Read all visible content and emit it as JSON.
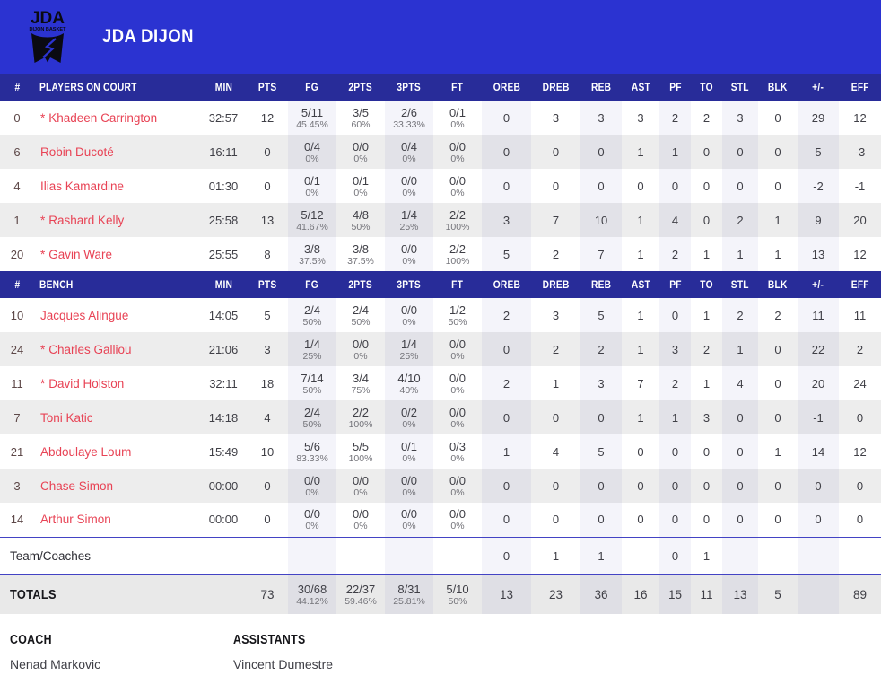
{
  "team": {
    "name": "JDA DIJON",
    "logo_text": "JDA",
    "logo_subtext": "DIJON BASKET"
  },
  "table": {
    "group_labels": {
      "on_court": "PLAYERS ON COURT",
      "bench": "BENCH"
    },
    "columns": {
      "num": "#",
      "min": "MIN",
      "pts": "PTS",
      "fg": "FG",
      "p2": "2PTS",
      "p3": "3PTS",
      "ft": "FT",
      "oreb": "OREB",
      "dreb": "DREB",
      "reb": "REB",
      "ast": "AST",
      "pf": "PF",
      "to": "TO",
      "stl": "STL",
      "blk": "BLK",
      "pm": "+/-",
      "eff": "EFF"
    },
    "starter_marker": "*",
    "on_court": [
      {
        "num": "0",
        "starter": true,
        "name": "Khadeen Carrington",
        "min": "32:57",
        "pts": "12",
        "fg": "5/11",
        "fgp": "45.45%",
        "p2": "3/5",
        "p2p": "60%",
        "p3": "2/6",
        "p3p": "33.33%",
        "ft": "0/1",
        "ftp": "0%",
        "oreb": "0",
        "dreb": "3",
        "reb": "3",
        "ast": "3",
        "pf": "2",
        "to": "2",
        "stl": "3",
        "blk": "0",
        "pm": "29",
        "eff": "12"
      },
      {
        "num": "6",
        "starter": false,
        "name": "Robin Ducoté",
        "min": "16:11",
        "pts": "0",
        "fg": "0/4",
        "fgp": "0%",
        "p2": "0/0",
        "p2p": "0%",
        "p3": "0/4",
        "p3p": "0%",
        "ft": "0/0",
        "ftp": "0%",
        "oreb": "0",
        "dreb": "0",
        "reb": "0",
        "ast": "1",
        "pf": "1",
        "to": "0",
        "stl": "0",
        "blk": "0",
        "pm": "5",
        "eff": "-3"
      },
      {
        "num": "4",
        "starter": false,
        "name": "Ilias Kamardine",
        "min": "01:30",
        "pts": "0",
        "fg": "0/1",
        "fgp": "0%",
        "p2": "0/1",
        "p2p": "0%",
        "p3": "0/0",
        "p3p": "0%",
        "ft": "0/0",
        "ftp": "0%",
        "oreb": "0",
        "dreb": "0",
        "reb": "0",
        "ast": "0",
        "pf": "0",
        "to": "0",
        "stl": "0",
        "blk": "0",
        "pm": "-2",
        "eff": "-1"
      },
      {
        "num": "1",
        "starter": true,
        "name": "Rashard Kelly",
        "min": "25:58",
        "pts": "13",
        "fg": "5/12",
        "fgp": "41.67%",
        "p2": "4/8",
        "p2p": "50%",
        "p3": "1/4",
        "p3p": "25%",
        "ft": "2/2",
        "ftp": "100%",
        "oreb": "3",
        "dreb": "7",
        "reb": "10",
        "ast": "1",
        "pf": "4",
        "to": "0",
        "stl": "2",
        "blk": "1",
        "pm": "9",
        "eff": "20"
      },
      {
        "num": "20",
        "starter": true,
        "name": "Gavin Ware",
        "min": "25:55",
        "pts": "8",
        "fg": "3/8",
        "fgp": "37.5%",
        "p2": "3/8",
        "p2p": "37.5%",
        "p3": "0/0",
        "p3p": "0%",
        "ft": "2/2",
        "ftp": "100%",
        "oreb": "5",
        "dreb": "2",
        "reb": "7",
        "ast": "1",
        "pf": "2",
        "to": "1",
        "stl": "1",
        "blk": "1",
        "pm": "13",
        "eff": "12"
      }
    ],
    "bench": [
      {
        "num": "10",
        "starter": false,
        "name": "Jacques Alingue",
        "min": "14:05",
        "pts": "5",
        "fg": "2/4",
        "fgp": "50%",
        "p2": "2/4",
        "p2p": "50%",
        "p3": "0/0",
        "p3p": "0%",
        "ft": "1/2",
        "ftp": "50%",
        "oreb": "2",
        "dreb": "3",
        "reb": "5",
        "ast": "1",
        "pf": "0",
        "to": "1",
        "stl": "2",
        "blk": "2",
        "pm": "11",
        "eff": "11"
      },
      {
        "num": "24",
        "starter": true,
        "name": "Charles Galliou",
        "min": "21:06",
        "pts": "3",
        "fg": "1/4",
        "fgp": "25%",
        "p2": "0/0",
        "p2p": "0%",
        "p3": "1/4",
        "p3p": "25%",
        "ft": "0/0",
        "ftp": "0%",
        "oreb": "0",
        "dreb": "2",
        "reb": "2",
        "ast": "1",
        "pf": "3",
        "to": "2",
        "stl": "1",
        "blk": "0",
        "pm": "22",
        "eff": "2"
      },
      {
        "num": "11",
        "starter": true,
        "name": "David Holston",
        "min": "32:11",
        "pts": "18",
        "fg": "7/14",
        "fgp": "50%",
        "p2": "3/4",
        "p2p": "75%",
        "p3": "4/10",
        "p3p": "40%",
        "ft": "0/0",
        "ftp": "0%",
        "oreb": "2",
        "dreb": "1",
        "reb": "3",
        "ast": "7",
        "pf": "2",
        "to": "1",
        "stl": "4",
        "blk": "0",
        "pm": "20",
        "eff": "24"
      },
      {
        "num": "7",
        "starter": false,
        "name": "Toni Katic",
        "min": "14:18",
        "pts": "4",
        "fg": "2/4",
        "fgp": "50%",
        "p2": "2/2",
        "p2p": "100%",
        "p3": "0/2",
        "p3p": "0%",
        "ft": "0/0",
        "ftp": "0%",
        "oreb": "0",
        "dreb": "0",
        "reb": "0",
        "ast": "1",
        "pf": "1",
        "to": "3",
        "stl": "0",
        "blk": "0",
        "pm": "-1",
        "eff": "0"
      },
      {
        "num": "21",
        "starter": false,
        "name": "Abdoulaye Loum",
        "min": "15:49",
        "pts": "10",
        "fg": "5/6",
        "fgp": "83.33%",
        "p2": "5/5",
        "p2p": "100%",
        "p3": "0/1",
        "p3p": "0%",
        "ft": "0/3",
        "ftp": "0%",
        "oreb": "1",
        "dreb": "4",
        "reb": "5",
        "ast": "0",
        "pf": "0",
        "to": "0",
        "stl": "0",
        "blk": "1",
        "pm": "14",
        "eff": "12"
      },
      {
        "num": "3",
        "starter": false,
        "name": "Chase Simon",
        "min": "00:00",
        "pts": "0",
        "fg": "0/0",
        "fgp": "0%",
        "p2": "0/0",
        "p2p": "0%",
        "p3": "0/0",
        "p3p": "0%",
        "ft": "0/0",
        "ftp": "0%",
        "oreb": "0",
        "dreb": "0",
        "reb": "0",
        "ast": "0",
        "pf": "0",
        "to": "0",
        "stl": "0",
        "blk": "0",
        "pm": "0",
        "eff": "0"
      },
      {
        "num": "14",
        "starter": false,
        "name": "Arthur Simon",
        "min": "00:00",
        "pts": "0",
        "fg": "0/0",
        "fgp": "0%",
        "p2": "0/0",
        "p2p": "0%",
        "p3": "0/0",
        "p3p": "0%",
        "ft": "0/0",
        "ftp": "0%",
        "oreb": "0",
        "dreb": "0",
        "reb": "0",
        "ast": "0",
        "pf": "0",
        "to": "0",
        "stl": "0",
        "blk": "0",
        "pm": "0",
        "eff": "0"
      }
    ],
    "team_coaches": {
      "label": "Team/Coaches",
      "oreb": "0",
      "dreb": "1",
      "reb": "1",
      "ast": "",
      "pf": "0",
      "to": "1",
      "stl": "",
      "blk": "",
      "pm": "",
      "eff": ""
    },
    "totals": {
      "label": "TOTALS",
      "min": "",
      "pts": "73",
      "fg": "30/68",
      "fgp": "44.12%",
      "p2": "22/37",
      "p2p": "59.46%",
      "p3": "8/31",
      "p3p": "25.81%",
      "ft": "5/10",
      "ftp": "50%",
      "oreb": "13",
      "dreb": "23",
      "reb": "36",
      "ast": "16",
      "pf": "15",
      "to": "11",
      "stl": "13",
      "blk": "5",
      "pm": "",
      "eff": "89"
    }
  },
  "staff": {
    "coach_label": "COACH",
    "coach_name": "Nenad Markovic",
    "assistants_label": "ASSISTANTS",
    "assistants_name": "Vincent Dumestre"
  },
  "colors": {
    "banner_blue": "#2b33d1",
    "table_header_blue": "#282c99",
    "player_name_red": "#e84355",
    "row_alt_gray": "#ededed",
    "totals_bg_gray": "#e9e9e9",
    "divider_blue": "#4343c4"
  }
}
